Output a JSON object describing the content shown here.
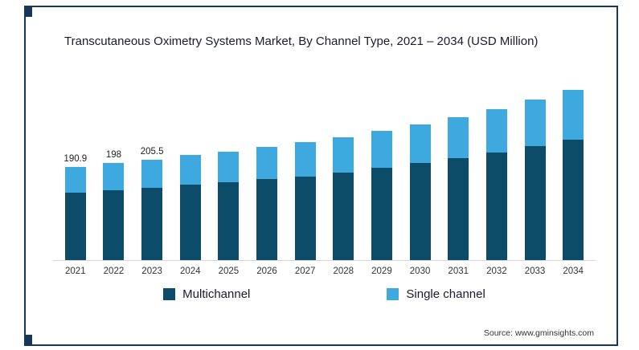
{
  "frame": {
    "border_color": "#16365c"
  },
  "title": "Transcutaneous Oximetry Systems Market, By Channel Type, 2021 – 2034 (USD Million)",
  "legend": {
    "items": [
      {
        "label": "Multichannel",
        "color": "#0d4c68"
      },
      {
        "label": "Single channel",
        "color": "#3da9de"
      }
    ]
  },
  "source": "Source: www.gminsights.com",
  "chart_data": {
    "type": "bar",
    "stacked": true,
    "title": "Transcutaneous Oximetry Systems Market, By Channel Type, 2021 – 2034 (USD Million)",
    "unit": "USD Million",
    "categories": [
      "2021",
      "2022",
      "2023",
      "2024",
      "2025",
      "2026",
      "2027",
      "2028",
      "2029",
      "2030",
      "2031",
      "2032",
      "2033",
      "2034"
    ],
    "series": [
      {
        "name": "Multichannel",
        "color": "#0d4c68",
        "values": [
          138.0,
          143.0,
          148.0,
          154.0,
          159.0,
          165.0,
          171.0,
          178.0,
          188.0,
          198.0,
          208.0,
          219.0,
          232.0,
          245.0
        ]
      },
      {
        "name": "Single channel",
        "color": "#3da9de",
        "values": [
          52.9,
          55.0,
          57.5,
          60.0,
          63.0,
          66.0,
          70.0,
          72.0,
          75.0,
          79.0,
          84.0,
          89.0,
          95.0,
          101.0
        ]
      }
    ],
    "totals": [
      190.9,
      198,
      205.5,
      214,
      222,
      231,
      241,
      250,
      263,
      277,
      292,
      308,
      327,
      346
    ],
    "data_labels": {
      "2021": "190.9",
      "2022": "198",
      "2023": "205.5"
    },
    "ylim": [
      0,
      380
    ],
    "gridlines": false,
    "legend_position": "bottom"
  }
}
